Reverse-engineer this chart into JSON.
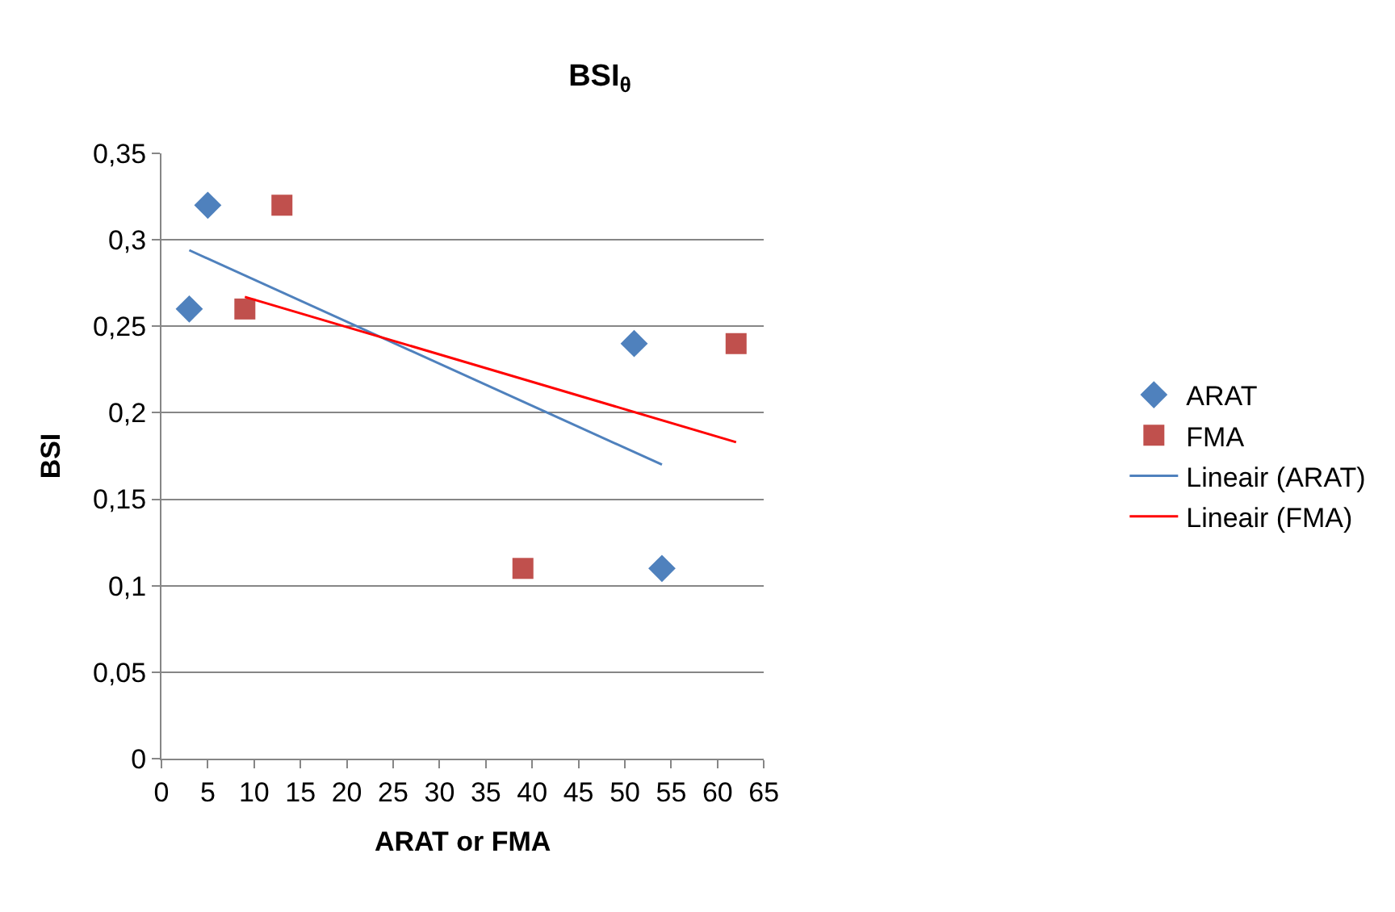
{
  "chart_data": {
    "type": "scatter",
    "title": "BSI$_{θ}$",
    "xlabel": "ARAT or FMA",
    "ylabel": "BSI",
    "xlim": [
      0,
      65
    ],
    "xticks": [
      0,
      5,
      10,
      15,
      20,
      25,
      30,
      35,
      40,
      45,
      50,
      55,
      60,
      65
    ],
    "ylim": [
      0,
      0.35
    ],
    "yticks": [
      {
        "value": 0,
        "label": "0"
      },
      {
        "value": 0.05,
        "label": "0,05"
      },
      {
        "value": 0.1,
        "label": "0,1"
      },
      {
        "value": 0.15,
        "label": "0,15"
      },
      {
        "value": 0.2,
        "label": "0,2"
      },
      {
        "value": 0.25,
        "label": "0,25"
      },
      {
        "value": 0.3,
        "label": "0,3"
      },
      {
        "value": 0.35,
        "label": "0,35"
      }
    ],
    "grid": "y",
    "legend": "right",
    "series": [
      {
        "name": "ARAT",
        "color": "#4f81bd",
        "marker": "diamond",
        "x": [
          3,
          5,
          51,
          54
        ],
        "values": [
          0.26,
          0.32,
          0.24,
          0.11
        ]
      },
      {
        "name": "FMA",
        "color": "#c0504d",
        "marker": "square",
        "x": [
          9,
          13,
          39,
          62
        ],
        "values": [
          0.26,
          0.32,
          0.11,
          0.24
        ]
      },
      {
        "name": "Lineair (ARAT)",
        "type": "line",
        "color": "#4f81bd",
        "x": [
          3,
          54
        ],
        "values": [
          0.294,
          0.17
        ]
      },
      {
        "name": "Lineair (FMA)",
        "type": "line",
        "color": "#ff0000",
        "x": [
          9,
          62
        ],
        "values": [
          0.267,
          0.183
        ]
      }
    ]
  }
}
